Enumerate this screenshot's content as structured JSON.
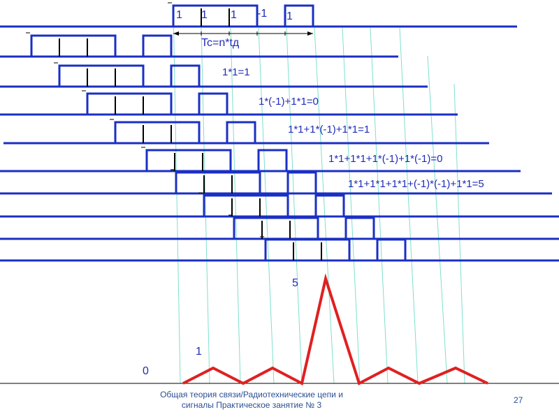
{
  "diagram": {
    "code_labels": [
      "1",
      "1",
      "1",
      "-1",
      "1"
    ],
    "period_label": "Tc=n*tд",
    "products": [
      "1*1=1",
      "1*(-1)+1*1=0",
      "1*1+1*(-1)+1*1=1",
      "1*1+1*1+1*(-1)+1*(-1)=0",
      "1*1+1*1+1*1+(-1)*(-1)+1*1=5"
    ],
    "output_labels": {
      "zero": "0",
      "one": "1",
      "peak": "5"
    },
    "colors": {
      "signal": "#1a2fc4",
      "guide": "#7fe0cc",
      "output": "#e02020",
      "text": "#1f2bb8",
      "axis": "#000000"
    }
  },
  "footer": {
    "line1": "Общая теория связи/Радиотехнические цепи и",
    "line2": "сигналы Практическое занятие № 3",
    "page": "27"
  }
}
